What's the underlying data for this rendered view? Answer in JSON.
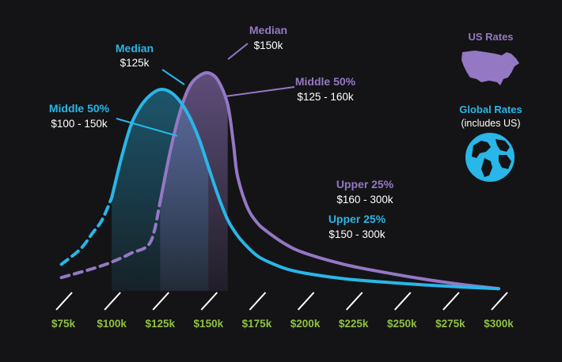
{
  "colors": {
    "background": "#141416",
    "global": "#29b6e8",
    "us": "#9478c4",
    "axis_labels": "#8fc23f",
    "text": "#ffffff"
  },
  "chart_data": {
    "type": "line",
    "x_axis": {
      "unit": "salary",
      "range": [
        75000,
        300000
      ],
      "ticks": [
        75000,
        100000,
        125000,
        150000,
        175000,
        200000,
        225000,
        250000,
        275000,
        300000
      ],
      "tick_labels": [
        "$75k",
        "$100k",
        "$125k",
        "$150k",
        "$175k",
        "$200k",
        "$225k",
        "$250k",
        "$275k",
        "$300k"
      ],
      "tick_marks": "slashes"
    },
    "y_axis": {
      "visible": false,
      "ylim": [
        0,
        1
      ]
    },
    "grid": false,
    "series": [
      {
        "name": "Global Rates",
        "color_key": "global",
        "x": [
          74000,
          80000,
          85000,
          90000,
          95000,
          100000,
          105000,
          110000,
          115000,
          120000,
          125000,
          130000,
          135000,
          140000,
          145000,
          150000,
          155000,
          160000,
          165000,
          170000,
          175000,
          180000,
          190000,
          200000,
          220000,
          240000,
          260000,
          280000,
          300000
        ],
        "y": [
          0.12,
          0.16,
          0.2,
          0.26,
          0.32,
          0.42,
          0.6,
          0.75,
          0.835,
          0.885,
          0.91,
          0.9,
          0.86,
          0.79,
          0.69,
          0.56,
          0.43,
          0.32,
          0.25,
          0.2,
          0.16,
          0.135,
          0.1,
          0.08,
          0.055,
          0.04,
          0.028,
          0.018,
          0.01
        ],
        "dashed_below": 100000,
        "middle_50": [
          100000,
          150000
        ],
        "median": 125000,
        "annotations": {
          "median": {
            "title": "Median",
            "value": "$125k"
          },
          "middle": {
            "title": "Middle 50%",
            "value": "$100 - 150k"
          },
          "upper": {
            "title": "Upper 25%",
            "value": "$150 - 300k"
          }
        }
      },
      {
        "name": "US Rates",
        "color_key": "us",
        "x": [
          74000,
          80000,
          90000,
          100000,
          110000,
          120000,
          125000,
          130000,
          135000,
          140000,
          145000,
          150000,
          155000,
          160000,
          163000,
          165000,
          170000,
          175000,
          180000,
          190000,
          200000,
          220000,
          240000,
          260000,
          280000,
          300000
        ],
        "y": [
          0.06,
          0.075,
          0.1,
          0.13,
          0.17,
          0.22,
          0.4,
          0.62,
          0.8,
          0.92,
          0.97,
          0.985,
          0.95,
          0.84,
          0.66,
          0.52,
          0.38,
          0.31,
          0.27,
          0.21,
          0.17,
          0.12,
          0.085,
          0.055,
          0.03,
          0.01
        ],
        "dashed_below": 125000,
        "middle_50": [
          125000,
          160000
        ],
        "median": 150000,
        "annotations": {
          "median": {
            "title": "Median",
            "value": "$150k"
          },
          "middle": {
            "title": "Middle 50%",
            "value": "$125 - 160k"
          },
          "upper": {
            "title": "Upper 25%",
            "value": "$160 - 300k"
          }
        }
      }
    ],
    "legend": {
      "placement": "right",
      "items": [
        {
          "label": "US Rates",
          "sublabel": "",
          "icon": "us-map-icon",
          "color_key": "us"
        },
        {
          "label": "Global Rates",
          "sublabel": "(includes US)",
          "icon": "globe-icon",
          "color_key": "global"
        }
      ]
    }
  }
}
